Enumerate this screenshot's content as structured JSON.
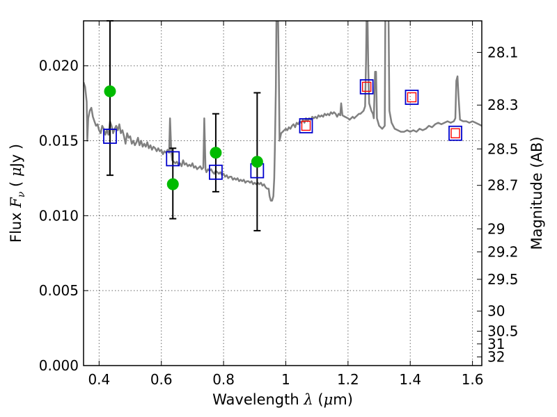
{
  "chart_data": {
    "type": "scatter",
    "title": "",
    "xlabel": {
      "prefix": "Wavelength",
      "symbol": "λ",
      "units_open": "(",
      "units_mu": "μ",
      "units_rest": "m)"
    },
    "ylabel": {
      "prefix": "Flux",
      "symbol": "F",
      "subscript": "ν",
      "units_open": "(",
      "units_mu": "μ",
      "units_rest": "Jy )"
    },
    "y2label": "Magnitude (AB)",
    "xlim": [
      0.35,
      1.63
    ],
    "ylim": [
      0.0,
      0.023
    ],
    "grid": true,
    "x_ticks": [
      {
        "value": 0.4,
        "label": "0.4"
      },
      {
        "value": 0.6,
        "label": "0.6"
      },
      {
        "value": 0.8,
        "label": "0.8"
      },
      {
        "value": 1.0,
        "label": "1"
      },
      {
        "value": 1.2,
        "label": "1.2"
      },
      {
        "value": 1.4,
        "label": "1.4"
      },
      {
        "value": 1.6,
        "label": "1.6"
      }
    ],
    "y_ticks": [
      {
        "value": 0.0,
        "label": "0.000"
      },
      {
        "value": 0.005,
        "label": "0.005"
      },
      {
        "value": 0.01,
        "label": "0.010"
      },
      {
        "value": 0.015,
        "label": "0.015"
      },
      {
        "value": 0.02,
        "label": "0.020"
      }
    ],
    "mag_ticks": [
      {
        "value": 28.1,
        "label": "28.1"
      },
      {
        "value": 28.3,
        "label": "28.3"
      },
      {
        "value": 28.5,
        "label": "28.5"
      },
      {
        "value": 28.7,
        "label": "28.7"
      },
      {
        "value": 29.0,
        "label": "29"
      },
      {
        "value": 29.2,
        "label": "29.2"
      },
      {
        "value": 29.5,
        "label": "29.5"
      },
      {
        "value": 30.0,
        "label": "30"
      },
      {
        "value": 30.5,
        "label": "30.5"
      },
      {
        "value": 31.0,
        "label": "31"
      },
      {
        "value": 32.0,
        "label": "32"
      }
    ],
    "colors": {
      "model": "#808080",
      "observed": "#00bb00",
      "model_photometry": "#0000cc",
      "model_photometry_inner": "#ff0000",
      "errorbar": "#000000",
      "grid": "#666666"
    },
    "series": [
      {
        "kind": "line",
        "points": [
          [
            0.35,
            0.0189
          ],
          [
            0.355,
            0.0186
          ],
          [
            0.36,
            0.0176
          ],
          [
            0.362,
            0.015
          ],
          [
            0.365,
            0.0165
          ],
          [
            0.37,
            0.017
          ],
          [
            0.375,
            0.0172
          ],
          [
            0.38,
            0.0166
          ],
          [
            0.385,
            0.0163
          ],
          [
            0.39,
            0.016
          ],
          [
            0.395,
            0.0161
          ],
          [
            0.4,
            0.0157
          ],
          [
            0.405,
            0.0155
          ],
          [
            0.41,
            0.016
          ],
          [
            0.415,
            0.0158
          ],
          [
            0.42,
            0.0154
          ],
          [
            0.425,
            0.0157
          ],
          [
            0.43,
            0.0154
          ],
          [
            0.435,
            0.0163
          ],
          [
            0.44,
            0.016
          ],
          [
            0.445,
            0.0155
          ],
          [
            0.45,
            0.0158
          ],
          [
            0.455,
            0.016
          ],
          [
            0.46,
            0.0157
          ],
          [
            0.465,
            0.0161
          ],
          [
            0.47,
            0.0155
          ],
          [
            0.475,
            0.0157
          ],
          [
            0.48,
            0.0153
          ],
          [
            0.485,
            0.0148
          ],
          [
            0.49,
            0.0155
          ],
          [
            0.495,
            0.0152
          ],
          [
            0.5,
            0.0153
          ],
          [
            0.505,
            0.0148
          ],
          [
            0.51,
            0.015
          ],
          [
            0.515,
            0.0147
          ],
          [
            0.52,
            0.0149
          ],
          [
            0.525,
            0.0152
          ],
          [
            0.53,
            0.0147
          ],
          [
            0.535,
            0.015
          ],
          [
            0.54,
            0.0146
          ],
          [
            0.545,
            0.0148
          ],
          [
            0.55,
            0.0146
          ],
          [
            0.555,
            0.0149
          ],
          [
            0.56,
            0.0145
          ],
          [
            0.565,
            0.0147
          ],
          [
            0.57,
            0.0144
          ],
          [
            0.575,
            0.0146
          ],
          [
            0.58,
            0.0145
          ],
          [
            0.585,
            0.0143
          ],
          [
            0.59,
            0.0145
          ],
          [
            0.595,
            0.0143
          ],
          [
            0.6,
            0.0144
          ],
          [
            0.605,
            0.0141
          ],
          [
            0.61,
            0.0143
          ],
          [
            0.615,
            0.0142
          ],
          [
            0.62,
            0.0144
          ],
          [
            0.625,
            0.0142
          ],
          [
            0.628,
            0.0165
          ],
          [
            0.632,
            0.0143
          ],
          [
            0.635,
            0.0137
          ],
          [
            0.64,
            0.0136
          ],
          [
            0.645,
            0.0135
          ],
          [
            0.65,
            0.0136
          ],
          [
            0.655,
            0.0134
          ],
          [
            0.66,
            0.0135
          ],
          [
            0.665,
            0.0133
          ],
          [
            0.67,
            0.0137
          ],
          [
            0.675,
            0.0134
          ],
          [
            0.68,
            0.0135
          ],
          [
            0.685,
            0.0133
          ],
          [
            0.69,
            0.0134
          ],
          [
            0.695,
            0.0133
          ],
          [
            0.7,
            0.0135
          ],
          [
            0.705,
            0.0132
          ],
          [
            0.71,
            0.0133
          ],
          [
            0.715,
            0.0131
          ],
          [
            0.72,
            0.0132
          ],
          [
            0.725,
            0.0133
          ],
          [
            0.73,
            0.0131
          ],
          [
            0.735,
            0.0132
          ],
          [
            0.738,
            0.0165
          ],
          [
            0.742,
            0.0131
          ],
          [
            0.745,
            0.0129
          ],
          [
            0.75,
            0.0131
          ],
          [
            0.755,
            0.013
          ],
          [
            0.76,
            0.0131
          ],
          [
            0.765,
            0.0129
          ],
          [
            0.77,
            0.0128
          ],
          [
            0.775,
            0.013
          ],
          [
            0.78,
            0.0129
          ],
          [
            0.785,
            0.0128
          ],
          [
            0.79,
            0.0129
          ],
          [
            0.795,
            0.0127
          ],
          [
            0.8,
            0.0128
          ],
          [
            0.805,
            0.0126
          ],
          [
            0.81,
            0.0127
          ],
          [
            0.815,
            0.0125
          ],
          [
            0.82,
            0.0126
          ],
          [
            0.825,
            0.0126
          ],
          [
            0.83,
            0.0124
          ],
          [
            0.835,
            0.0125
          ],
          [
            0.84,
            0.0124
          ],
          [
            0.845,
            0.0125
          ],
          [
            0.85,
            0.0123
          ],
          [
            0.855,
            0.0124
          ],
          [
            0.86,
            0.0123
          ],
          [
            0.865,
            0.0124
          ],
          [
            0.87,
            0.0122
          ],
          [
            0.875,
            0.0123
          ],
          [
            0.88,
            0.0123
          ],
          [
            0.885,
            0.0122
          ],
          [
            0.89,
            0.0123
          ],
          [
            0.895,
            0.0121
          ],
          [
            0.9,
            0.0122
          ],
          [
            0.905,
            0.0121
          ],
          [
            0.91,
            0.0122
          ],
          [
            0.915,
            0.0121
          ],
          [
            0.92,
            0.0122
          ],
          [
            0.925,
            0.012
          ],
          [
            0.93,
            0.0121
          ],
          [
            0.935,
            0.0119
          ],
          [
            0.94,
            0.0118
          ],
          [
            0.945,
            0.0118
          ],
          [
            0.948,
            0.0113
          ],
          [
            0.952,
            0.011
          ],
          [
            0.956,
            0.011
          ],
          [
            0.96,
            0.0113
          ],
          [
            0.963,
            0.0125
          ],
          [
            0.965,
            0.0145
          ],
          [
            0.968,
            0.0185
          ],
          [
            0.97,
            0.0235
          ],
          [
            0.975,
            0.0235
          ],
          [
            0.978,
            0.019
          ],
          [
            0.98,
            0.015
          ],
          [
            0.985,
            0.0155
          ],
          [
            0.99,
            0.0156
          ],
          [
            0.995,
            0.0157
          ],
          [
            1.0,
            0.0158
          ],
          [
            1.005,
            0.0157
          ],
          [
            1.01,
            0.0159
          ],
          [
            1.015,
            0.0158
          ],
          [
            1.02,
            0.016
          ],
          [
            1.025,
            0.0161
          ],
          [
            1.03,
            0.0159
          ],
          [
            1.035,
            0.0162
          ],
          [
            1.04,
            0.0161
          ],
          [
            1.045,
            0.0163
          ],
          [
            1.05,
            0.0162
          ],
          [
            1.055,
            0.0164
          ],
          [
            1.06,
            0.0162
          ],
          [
            1.065,
            0.0165
          ],
          [
            1.07,
            0.0163
          ],
          [
            1.075,
            0.0165
          ],
          [
            1.08,
            0.0164
          ],
          [
            1.085,
            0.0166
          ],
          [
            1.09,
            0.0165
          ],
          [
            1.095,
            0.0166
          ],
          [
            1.1,
            0.0165
          ],
          [
            1.105,
            0.0167
          ],
          [
            1.11,
            0.0166
          ],
          [
            1.115,
            0.0167
          ],
          [
            1.12,
            0.0166
          ],
          [
            1.125,
            0.0168
          ],
          [
            1.13,
            0.0167
          ],
          [
            1.135,
            0.0168
          ],
          [
            1.14,
            0.0167
          ],
          [
            1.145,
            0.0169
          ],
          [
            1.15,
            0.0168
          ],
          [
            1.155,
            0.0169
          ],
          [
            1.16,
            0.0168
          ],
          [
            1.165,
            0.0166
          ],
          [
            1.17,
            0.0168
          ],
          [
            1.175,
            0.0167
          ],
          [
            1.178,
            0.0175
          ],
          [
            1.182,
            0.0167
          ],
          [
            1.19,
            0.0166
          ],
          [
            1.2,
            0.0165
          ],
          [
            1.205,
            0.0164
          ],
          [
            1.21,
            0.0165
          ],
          [
            1.215,
            0.0166
          ],
          [
            1.22,
            0.0165
          ],
          [
            1.225,
            0.0166
          ],
          [
            1.23,
            0.0167
          ],
          [
            1.235,
            0.0168
          ],
          [
            1.24,
            0.0168
          ],
          [
            1.245,
            0.0169
          ],
          [
            1.25,
            0.017
          ],
          [
            1.255,
            0.0173
          ],
          [
            1.258,
            0.0205
          ],
          [
            1.26,
            0.024
          ],
          [
            1.262,
            0.024
          ],
          [
            1.265,
            0.02
          ],
          [
            1.268,
            0.0175
          ],
          [
            1.275,
            0.017
          ],
          [
            1.28,
            0.0168
          ],
          [
            1.283,
            0.0165
          ],
          [
            1.287,
            0.0196
          ],
          [
            1.29,
            0.0196
          ],
          [
            1.293,
            0.0165
          ],
          [
            1.3,
            0.016
          ],
          [
            1.31,
            0.0158
          ],
          [
            1.318,
            0.016
          ],
          [
            1.32,
            0.024
          ],
          [
            1.33,
            0.024
          ],
          [
            1.333,
            0.017
          ],
          [
            1.34,
            0.0162
          ],
          [
            1.35,
            0.0158
          ],
          [
            1.36,
            0.0157
          ],
          [
            1.37,
            0.0156
          ],
          [
            1.38,
            0.0156
          ],
          [
            1.39,
            0.0157
          ],
          [
            1.4,
            0.0156
          ],
          [
            1.41,
            0.0157
          ],
          [
            1.42,
            0.0156
          ],
          [
            1.43,
            0.0158
          ],
          [
            1.44,
            0.0157
          ],
          [
            1.45,
            0.0158
          ],
          [
            1.46,
            0.016
          ],
          [
            1.47,
            0.0159
          ],
          [
            1.48,
            0.0161
          ],
          [
            1.49,
            0.0162
          ],
          [
            1.5,
            0.0161
          ],
          [
            1.51,
            0.0162
          ],
          [
            1.52,
            0.0163
          ],
          [
            1.53,
            0.0162
          ],
          [
            1.54,
            0.0163
          ],
          [
            1.545,
            0.0165
          ],
          [
            1.548,
            0.019
          ],
          [
            1.552,
            0.0193
          ],
          [
            1.555,
            0.018
          ],
          [
            1.56,
            0.0164
          ],
          [
            1.57,
            0.0163
          ],
          [
            1.58,
            0.0163
          ],
          [
            1.59,
            0.0162
          ],
          [
            1.6,
            0.0163
          ],
          [
            1.61,
            0.0162
          ],
          [
            1.62,
            0.0161
          ],
          [
            1.63,
            0.016
          ]
        ]
      },
      {
        "kind": "observed",
        "points": [
          {
            "x": 0.435,
            "y": 0.0183,
            "err_low": 0.0127,
            "err_high": 0.023
          },
          {
            "x": 0.637,
            "y": 0.0121,
            "err_low": 0.0098,
            "err_high": 0.0145
          },
          {
            "x": 0.775,
            "y": 0.0142,
            "err_low": 0.0116,
            "err_high": 0.0168
          },
          {
            "x": 0.908,
            "y": 0.0136,
            "err_low": 0.009,
            "err_high": 0.0182
          }
        ]
      },
      {
        "kind": "model_photometry",
        "points": [
          {
            "x": 0.435,
            "y": 0.0153
          },
          {
            "x": 0.637,
            "y": 0.0138
          },
          {
            "x": 0.775,
            "y": 0.0129
          },
          {
            "x": 0.908,
            "y": 0.013
          },
          {
            "x": 1.065,
            "y": 0.016
          },
          {
            "x": 1.26,
            "y": 0.0186
          },
          {
            "x": 1.405,
            "y": 0.0179
          },
          {
            "x": 1.545,
            "y": 0.0155
          }
        ]
      }
    ]
  }
}
